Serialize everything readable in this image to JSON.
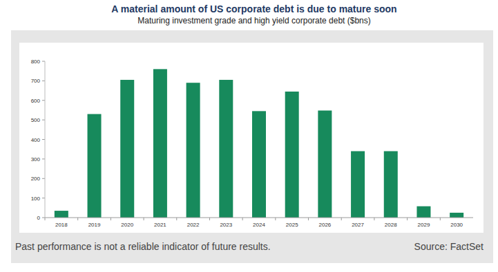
{
  "chart_data": {
    "type": "bar",
    "title": "A material amount of US corporate debt is due to mature soon",
    "subtitle": "Maturing investment grade and high yield corporate debt ($bns)",
    "categories": [
      "2018",
      "2019",
      "2020",
      "2021",
      "2022",
      "2023",
      "2024",
      "2025",
      "2026",
      "2027",
      "2028",
      "2029",
      "2030"
    ],
    "values": [
      35,
      530,
      705,
      760,
      690,
      705,
      545,
      645,
      548,
      340,
      340,
      58,
      25
    ],
    "color": "#178a5c",
    "ylim": [
      0,
      800
    ],
    "yticks": [
      0,
      100,
      200,
      300,
      400,
      500,
      600,
      700,
      800
    ],
    "grid": false,
    "footnote": "Past performance is not a reliable indicator of future results.",
    "source": "Source: FactSet"
  }
}
